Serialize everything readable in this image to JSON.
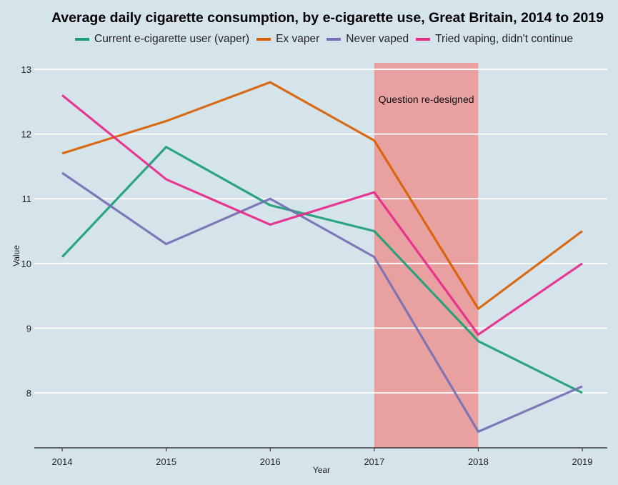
{
  "chart_data": {
    "type": "line",
    "title": "Average daily cigarette consumption, by e-cigarette use, Great Britain, 2014 to 2019",
    "xlabel": "Year",
    "ylabel": "Value",
    "categories": [
      "2014",
      "2015",
      "2016",
      "2017",
      "2018",
      "2019"
    ],
    "ylim": [
      7.15,
      13.1
    ],
    "yticks": [
      8,
      9,
      10,
      11,
      12,
      13
    ],
    "grid": true,
    "legend_position": "top",
    "series": [
      {
        "name": "Current e-cigarette user (vaper)",
        "color": "#1b9e77",
        "values": [
          10.1,
          11.8,
          10.9,
          10.5,
          8.8,
          8.0
        ]
      },
      {
        "name": "Ex vaper",
        "color": "#d95f02",
        "values": [
          11.7,
          12.2,
          12.8,
          11.9,
          9.3,
          10.5
        ]
      },
      {
        "name": "Never vaped",
        "color": "#7570b3",
        "values": [
          11.4,
          10.3,
          11.0,
          10.1,
          7.4,
          8.1
        ]
      },
      {
        "name": "Tried vaping, didn't continue",
        "color": "#e7298a",
        "values": [
          12.6,
          11.3,
          10.6,
          11.1,
          8.9,
          10.0
        ]
      }
    ],
    "annotation": {
      "text": "Question re-designed",
      "x_start": "2017",
      "x_end": "2018",
      "color": "#e8a0a0"
    }
  }
}
